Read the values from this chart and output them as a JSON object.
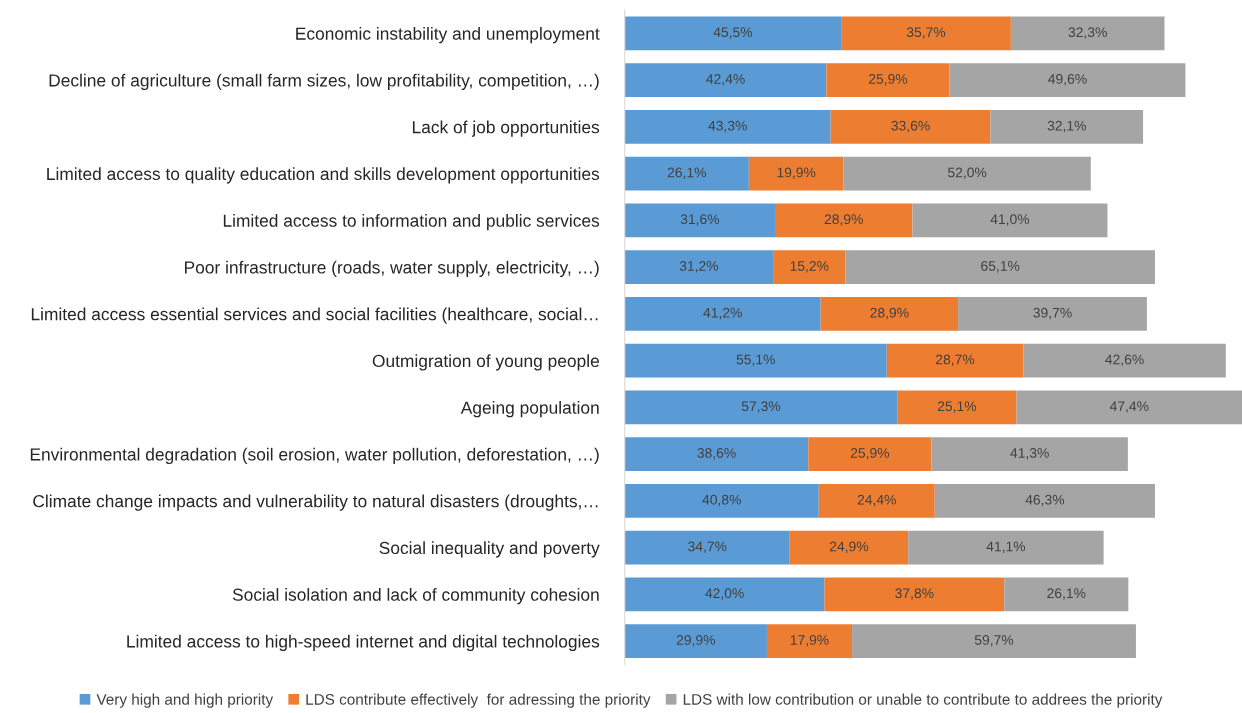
{
  "chart_data": {
    "type": "bar",
    "orientation": "horizontal",
    "stacked": true,
    "legend": "bottom",
    "grid": false,
    "categories": [
      "Economic instability and unemployment",
      "Decline of agriculture (small farm sizes, low profitability, competition, …)",
      "Lack of job opportunities",
      "Limited access to quality education and skills development opportunities",
      "Limited access to information and public services",
      "Poor infrastructure (roads, water supply, electricity, …)",
      "Limited access essential services and social facilities (healthcare, social…",
      "Outmigration of young people",
      "Ageing population",
      "Environmental degradation (soil erosion, water pollution, deforestation, …)",
      "Climate change impacts and vulnerability to natural disasters (droughts,…",
      "Social inequality and poverty",
      "Social isolation and lack of community cohesion",
      "Limited access to high-speed internet and digital technologies"
    ],
    "series": [
      {
        "name": "Very high and high priority",
        "color": "#5b9bd5",
        "values": [
          45.5,
          42.4,
          43.3,
          26.1,
          31.6,
          31.2,
          41.2,
          55.1,
          57.3,
          38.6,
          40.8,
          34.7,
          42.0,
          29.9
        ],
        "value_labels": [
          "45,5%",
          "42,4%",
          "43,3%",
          "26,1%",
          "31,6%",
          "31,2%",
          "41,2%",
          "55,1%",
          "57,3%",
          "38,6%",
          "40,8%",
          "34,7%",
          "42,0%",
          "29,9%"
        ]
      },
      {
        "name": "LDS contribute effectively  for adressing the priority",
        "color": "#ed7d31",
        "values": [
          35.7,
          25.9,
          33.6,
          19.9,
          28.9,
          15.2,
          28.9,
          28.7,
          25.1,
          25.9,
          24.4,
          24.9,
          37.8,
          17.9
        ],
        "value_labels": [
          "35,7%",
          "25,9%",
          "33,6%",
          "19,9%",
          "28,9%",
          "15,2%",
          "28,9%",
          "28,7%",
          "25,1%",
          "25,9%",
          "24,4%",
          "24,9%",
          "37,8%",
          "17,9%"
        ]
      },
      {
        "name": "LDS with low contribution or unable to contribute to addrees the priority",
        "color": "#a5a5a5",
        "values": [
          32.3,
          49.6,
          32.1,
          52.0,
          41.0,
          65.1,
          39.7,
          42.6,
          47.4,
          41.3,
          46.3,
          41.1,
          26.1,
          59.7
        ],
        "value_labels": [
          "32,3%",
          "49,6%",
          "32,1%",
          "52,0%",
          "41,0%",
          "65,1%",
          "39,7%",
          "42,6%",
          "47,4%",
          "41,3%",
          "46,3%",
          "41,1%",
          "26,1%",
          "59,7%"
        ]
      }
    ]
  }
}
